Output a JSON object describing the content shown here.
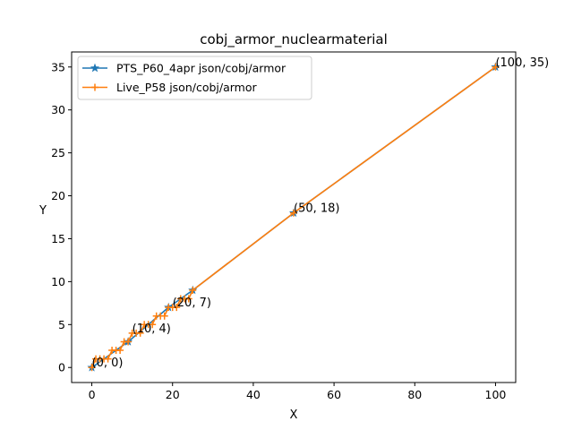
{
  "chart_data": {
    "type": "line",
    "title": "cobj_armor_nuclearmaterial",
    "xlabel": "X",
    "ylabel": "Y",
    "xlim": [
      -5,
      105
    ],
    "ylim": [
      -1.75,
      36.75
    ],
    "xticks": [
      0,
      20,
      40,
      60,
      80,
      100
    ],
    "yticks": [
      0,
      5,
      10,
      15,
      20,
      25,
      30,
      35
    ],
    "grid": false,
    "legend": "upper-left",
    "series": [
      {
        "name": "PTS_P60_4apr json/cobj/armor",
        "color": "#1f77b4",
        "marker": "star",
        "x": [
          0,
          9,
          19,
          25,
          50,
          100
        ],
        "y": [
          0,
          3,
          7,
          9,
          18,
          35
        ]
      },
      {
        "name": "Live_P58 json/cobj/armor",
        "color": "#ff7f0e",
        "marker": "plus",
        "x": [
          0,
          1,
          2,
          3,
          4,
          5,
          6,
          7,
          8,
          9,
          10,
          11,
          12,
          13,
          14,
          15,
          16,
          17,
          18,
          19,
          20,
          21,
          22,
          23,
          24,
          25,
          50,
          100
        ],
        "y": [
          0,
          1,
          1,
          1,
          1,
          2,
          2,
          2,
          3,
          3,
          4,
          4,
          4,
          5,
          5,
          5,
          6,
          6,
          6,
          7,
          7,
          7,
          8,
          8,
          8,
          9,
          18,
          35
        ]
      }
    ],
    "annotations": [
      {
        "x": 0,
        "y": 0,
        "text": "(0, 0)"
      },
      {
        "x": 10,
        "y": 4,
        "text": "(10, 4)"
      },
      {
        "x": 20,
        "y": 7,
        "text": "(20, 7)"
      },
      {
        "x": 50,
        "y": 18,
        "text": "(50, 18)"
      },
      {
        "x": 100,
        "y": 35,
        "text": "(100, 35)"
      }
    ]
  }
}
